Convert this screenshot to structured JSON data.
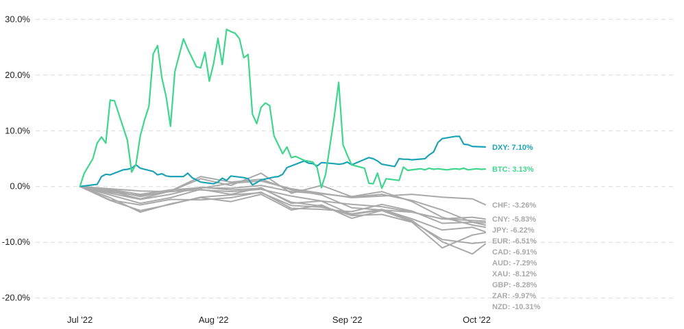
{
  "chart_data": {
    "type": "line",
    "title": "",
    "xlabel": "",
    "ylabel": "",
    "ylim": [
      -22,
      32
    ],
    "yticks": [
      30,
      20,
      10,
      0,
      -10,
      -20
    ],
    "ytick_labels": [
      "30.0%",
      "20.0%",
      "10.0%",
      "0.0%",
      "-10.0%",
      "-20.0%"
    ],
    "xticks": [
      {
        "date": "2022-07-01",
        "label": "Jul '22"
      },
      {
        "date": "2022-08-01",
        "label": "Aug '22"
      },
      {
        "date": "2022-09-01",
        "label": "Sep '22"
      },
      {
        "date": "2022-10-01",
        "label": "Oct '22"
      }
    ],
    "xlim": [
      "2022-06-22",
      "2022-11-16"
    ],
    "grid": true,
    "legend": "end-of-line labels",
    "colors": {
      "DXY": "#1ba3b4",
      "BTC": "#3dd68c",
      "other": "#a9a9a9"
    },
    "series": [
      {
        "name": "DXY",
        "end_label": "DXY: 7.10%",
        "color": "#1ba3b4",
        "highlight": true,
        "dates": [
          "2022-07-01",
          "2022-07-05",
          "2022-07-06",
          "2022-07-07",
          "2022-07-08",
          "2022-07-11",
          "2022-07-12",
          "2022-07-13",
          "2022-07-14",
          "2022-07-15",
          "2022-07-18",
          "2022-07-19",
          "2022-07-20",
          "2022-07-21",
          "2022-07-22",
          "2022-07-25",
          "2022-07-26",
          "2022-07-27",
          "2022-07-28",
          "2022-07-29",
          "2022-08-01",
          "2022-08-02",
          "2022-08-03",
          "2022-08-04",
          "2022-08-05",
          "2022-08-08",
          "2022-08-09",
          "2022-08-10",
          "2022-08-11",
          "2022-08-12",
          "2022-08-15",
          "2022-08-16",
          "2022-08-17",
          "2022-08-18",
          "2022-08-19",
          "2022-08-22",
          "2022-08-23",
          "2022-08-24",
          "2022-08-25",
          "2022-08-26",
          "2022-08-29",
          "2022-08-30",
          "2022-08-31",
          "2022-09-01",
          "2022-09-02",
          "2022-09-06",
          "2022-09-07",
          "2022-09-08",
          "2022-09-09",
          "2022-09-12",
          "2022-09-13",
          "2022-09-14",
          "2022-09-15",
          "2022-09-16",
          "2022-09-19",
          "2022-09-20",
          "2022-09-21",
          "2022-09-22",
          "2022-09-23",
          "2022-09-26",
          "2022-09-27",
          "2022-09-28",
          "2022-09-29",
          "2022-09-30",
          "2022-10-03"
        ],
        "values": [
          0.0,
          0.4,
          1.8,
          2.2,
          2.1,
          3.0,
          3.1,
          3.3,
          3.9,
          3.3,
          2.7,
          2.1,
          2.3,
          1.9,
          1.8,
          1.8,
          2.4,
          1.6,
          1.2,
          0.8,
          0.5,
          0.8,
          1.5,
          1.1,
          1.9,
          1.6,
          1.4,
          0.3,
          0.7,
          1.2,
          1.7,
          1.8,
          2.2,
          3.4,
          3.7,
          4.6,
          4.2,
          4.1,
          3.7,
          4.3,
          4.1,
          4.0,
          4.1,
          4.4,
          3.9,
          5.2,
          5.0,
          4.6,
          4.0,
          3.6,
          5.0,
          4.9,
          4.9,
          4.8,
          5.0,
          5.7,
          6.2,
          7.9,
          8.6,
          9.0,
          9.0,
          7.6,
          7.5,
          7.2,
          7.1
        ]
      },
      {
        "name": "BTC",
        "end_label": "BTC: 3.13%",
        "color": "#3dd68c",
        "highlight": true,
        "dates": [
          "2022-07-01",
          "2022-07-02",
          "2022-07-04",
          "2022-07-05",
          "2022-07-06",
          "2022-07-07",
          "2022-07-08",
          "2022-07-09",
          "2022-07-12",
          "2022-07-13",
          "2022-07-14",
          "2022-07-15",
          "2022-07-16",
          "2022-07-17",
          "2022-07-18",
          "2022-07-19",
          "2022-07-20",
          "2022-07-21",
          "2022-07-22",
          "2022-07-23",
          "2022-07-25",
          "2022-07-26",
          "2022-07-28",
          "2022-07-29",
          "2022-07-30",
          "2022-07-31",
          "2022-08-01",
          "2022-08-02",
          "2022-08-03",
          "2022-08-04",
          "2022-08-05",
          "2022-08-06",
          "2022-08-07",
          "2022-08-08",
          "2022-08-09",
          "2022-08-10",
          "2022-08-11",
          "2022-08-12",
          "2022-08-13",
          "2022-08-14",
          "2022-08-15",
          "2022-08-17",
          "2022-08-18",
          "2022-08-19",
          "2022-08-20",
          "2022-08-22",
          "2022-08-24",
          "2022-08-25",
          "2022-08-26",
          "2022-08-27",
          "2022-08-29",
          "2022-08-30",
          "2022-08-31",
          "2022-09-01",
          "2022-09-02",
          "2022-09-05",
          "2022-09-06",
          "2022-09-07",
          "2022-09-08",
          "2022-09-09",
          "2022-09-10",
          "2022-09-13",
          "2022-09-14",
          "2022-09-15",
          "2022-09-17",
          "2022-09-18",
          "2022-09-19",
          "2022-09-20",
          "2022-09-21",
          "2022-09-22",
          "2022-09-23",
          "2022-09-24",
          "2022-09-26",
          "2022-09-27",
          "2022-09-28",
          "2022-09-29",
          "2022-10-01",
          "2022-10-02",
          "2022-10-03"
        ],
        "values": [
          0.0,
          2.4,
          5.0,
          7.8,
          8.9,
          7.8,
          15.5,
          15.4,
          8.3,
          2.6,
          4.0,
          9.1,
          12.0,
          14.4,
          23.8,
          25.3,
          19.5,
          16.1,
          10.8,
          20.6,
          26.5,
          24.7,
          21.5,
          21.3,
          24.1,
          18.9,
          22.1,
          26.6,
          21.9,
          28.2,
          27.8,
          27.5,
          26.5,
          23.1,
          23.7,
          13.0,
          11.3,
          14.2,
          15.0,
          14.5,
          9.1,
          5.9,
          7.1,
          5.2,
          5.4,
          4.7,
          4.4,
          3.4,
          -0.2,
          2.3,
          12.7,
          18.7,
          7.5,
          5.6,
          3.9,
          3.3,
          0.6,
          0.5,
          2.4,
          -0.3,
          1.4,
          1.1,
          3.5,
          2.9,
          3.1,
          3.2,
          3.0,
          3.3,
          3.1,
          3.2,
          3.1,
          3.0,
          3.2,
          3.1,
          3.3,
          3.0,
          3.2,
          3.1,
          3.13
        ]
      },
      {
        "name": "CHF",
        "end_label": "CHF: -3.26%",
        "color": "#a9a9a9",
        "highlight": false,
        "dates": [
          "2022-07-01",
          "2022-07-08",
          "2022-07-15",
          "2022-07-22",
          "2022-07-29",
          "2022-08-05",
          "2022-08-12",
          "2022-08-19",
          "2022-08-26",
          "2022-09-02",
          "2022-09-09",
          "2022-09-16",
          "2022-09-23",
          "2022-09-30",
          "2022-10-03"
        ],
        "values": [
          0.0,
          -1.0,
          -1.6,
          -0.9,
          -0.3,
          0.6,
          1.0,
          -0.4,
          -1.2,
          -2.0,
          -1.7,
          -1.4,
          -1.9,
          -2.2,
          -3.26
        ]
      },
      {
        "name": "CNY",
        "end_label": "CNY: -5.83%",
        "color": "#a9a9a9",
        "highlight": false,
        "dates": [
          "2022-07-01",
          "2022-07-08",
          "2022-07-15",
          "2022-07-22",
          "2022-07-29",
          "2022-08-05",
          "2022-08-12",
          "2022-08-19",
          "2022-08-26",
          "2022-09-02",
          "2022-09-09",
          "2022-09-16",
          "2022-09-23",
          "2022-09-30",
          "2022-10-03"
        ],
        "values": [
          0.0,
          -0.4,
          -0.8,
          -0.9,
          -0.6,
          -0.9,
          -0.5,
          -1.7,
          -2.6,
          -3.2,
          -3.6,
          -4.6,
          -5.8,
          -5.5,
          -5.83
        ]
      },
      {
        "name": "JPY",
        "end_label": "JPY: -6.22%",
        "color": "#a9a9a9",
        "highlight": false,
        "dates": [
          "2022-07-01",
          "2022-07-08",
          "2022-07-15",
          "2022-07-22",
          "2022-07-29",
          "2022-08-05",
          "2022-08-12",
          "2022-08-19",
          "2022-08-26",
          "2022-09-02",
          "2022-09-09",
          "2022-09-16",
          "2022-09-23",
          "2022-09-30",
          "2022-10-03"
        ],
        "values": [
          0.0,
          -0.6,
          -1.8,
          -0.8,
          1.8,
          0.8,
          1.3,
          -0.6,
          -1.5,
          -3.8,
          -4.2,
          -4.6,
          -5.8,
          -6.1,
          -6.22
        ]
      },
      {
        "name": "EUR",
        "end_label": "EUR: -6.51%",
        "color": "#a9a9a9",
        "highlight": false,
        "dates": [
          "2022-07-01",
          "2022-07-08",
          "2022-07-15",
          "2022-07-22",
          "2022-07-29",
          "2022-08-05",
          "2022-08-12",
          "2022-08-19",
          "2022-08-26",
          "2022-09-02",
          "2022-09-09",
          "2022-09-16",
          "2022-09-23",
          "2022-09-30",
          "2022-10-03"
        ],
        "values": [
          0.0,
          -2.4,
          -3.3,
          -2.3,
          -2.4,
          -2.0,
          -1.0,
          -3.9,
          -4.1,
          -4.5,
          -3.2,
          -4.4,
          -6.6,
          -6.4,
          -6.51
        ]
      },
      {
        "name": "CAD",
        "end_label": "CAD: -6.91%",
        "color": "#a9a9a9",
        "highlight": false,
        "dates": [
          "2022-07-01",
          "2022-07-08",
          "2022-07-15",
          "2022-07-22",
          "2022-07-29",
          "2022-08-05",
          "2022-08-12",
          "2022-08-19",
          "2022-08-26",
          "2022-09-02",
          "2022-09-09",
          "2022-09-16",
          "2022-09-23",
          "2022-09-30",
          "2022-10-03"
        ],
        "values": [
          0.0,
          -0.5,
          -1.4,
          -0.6,
          -0.2,
          -0.3,
          0.2,
          -0.9,
          -1.3,
          -1.9,
          -1.4,
          -2.5,
          -4.2,
          -6.4,
          -6.91
        ]
      },
      {
        "name": "AUD",
        "end_label": "AUD: -7.29%",
        "color": "#a9a9a9",
        "highlight": false,
        "dates": [
          "2022-07-01",
          "2022-07-08",
          "2022-07-15",
          "2022-07-22",
          "2022-07-29",
          "2022-08-05",
          "2022-08-12",
          "2022-08-19",
          "2022-08-26",
          "2022-09-02",
          "2022-09-09",
          "2022-09-16",
          "2022-09-23",
          "2022-09-30",
          "2022-10-03"
        ],
        "values": [
          0.0,
          -0.8,
          -2.2,
          -0.8,
          1.4,
          0.2,
          2.4,
          -1.2,
          0.2,
          -1.8,
          -0.9,
          -2.7,
          -5.5,
          -6.9,
          -7.29
        ]
      },
      {
        "name": "XAU",
        "end_label": "XAU: -8.12%",
        "color": "#a9a9a9",
        "highlight": false,
        "dates": [
          "2022-07-01",
          "2022-07-08",
          "2022-07-15",
          "2022-07-22",
          "2022-07-29",
          "2022-08-05",
          "2022-08-12",
          "2022-08-19",
          "2022-08-26",
          "2022-09-02",
          "2022-09-09",
          "2022-09-16",
          "2022-09-23",
          "2022-09-30",
          "2022-10-03"
        ],
        "values": [
          0.0,
          -2.5,
          -4.3,
          -3.2,
          -1.9,
          -1.5,
          -1.1,
          -3.4,
          -3.7,
          -4.9,
          -4.1,
          -5.8,
          -7.8,
          -7.3,
          -8.12
        ]
      },
      {
        "name": "GBP",
        "end_label": "GBP: -8.28%",
        "color": "#a9a9a9",
        "highlight": false,
        "dates": [
          "2022-07-01",
          "2022-07-08",
          "2022-07-15",
          "2022-07-22",
          "2022-07-29",
          "2022-08-05",
          "2022-08-12",
          "2022-08-19",
          "2022-08-26",
          "2022-09-02",
          "2022-09-09",
          "2022-09-16",
          "2022-09-23",
          "2022-09-30",
          "2022-10-03"
        ],
        "values": [
          0.0,
          -1.2,
          -2.3,
          -1.4,
          -0.1,
          -0.6,
          -0.3,
          -2.8,
          -3.5,
          -5.2,
          -5.0,
          -6.4,
          -11.0,
          -8.7,
          -8.28
        ]
      },
      {
        "name": "ZAR",
        "end_label": "ZAR: -9.97%",
        "color": "#a9a9a9",
        "highlight": false,
        "dates": [
          "2022-07-01",
          "2022-07-08",
          "2022-07-15",
          "2022-07-22",
          "2022-07-29",
          "2022-08-05",
          "2022-08-12",
          "2022-08-19",
          "2022-08-26",
          "2022-09-02",
          "2022-09-09",
          "2022-09-16",
          "2022-09-23",
          "2022-09-30",
          "2022-10-03"
        ],
        "values": [
          0.0,
          -2.0,
          -4.6,
          -3.1,
          -2.0,
          -2.7,
          -1.4,
          -4.2,
          -3.3,
          -5.7,
          -4.3,
          -6.3,
          -9.5,
          -10.2,
          -9.97
        ]
      },
      {
        "name": "NZD",
        "end_label": "NZD: -10.31%",
        "color": "#a9a9a9",
        "highlight": false,
        "dates": [
          "2022-07-01",
          "2022-07-08",
          "2022-07-15",
          "2022-07-22",
          "2022-07-29",
          "2022-08-05",
          "2022-08-12",
          "2022-08-19",
          "2022-08-26",
          "2022-09-02",
          "2022-09-09",
          "2022-09-16",
          "2022-09-23",
          "2022-09-30",
          "2022-10-03"
        ],
        "values": [
          0.0,
          -1.5,
          -3.0,
          -2.0,
          -0.5,
          -1.4,
          -0.2,
          -3.0,
          -2.6,
          -5.0,
          -4.2,
          -6.1,
          -9.9,
          -12.1,
          -10.31
        ]
      }
    ]
  }
}
